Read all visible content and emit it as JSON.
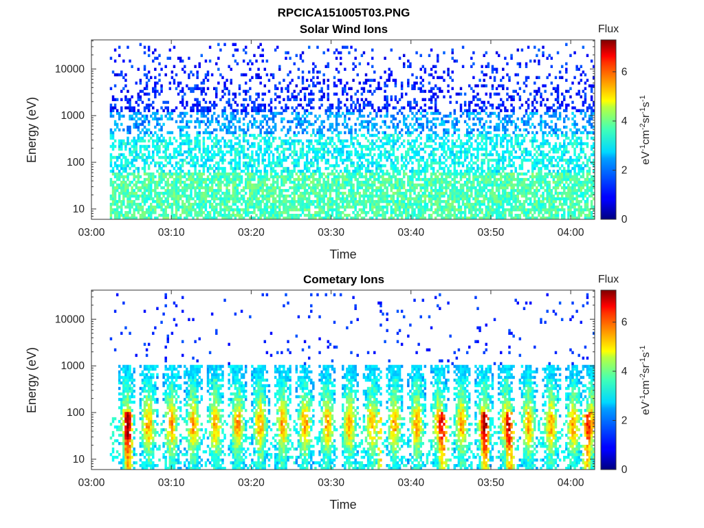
{
  "figure": {
    "super_title": "RPCICA151005T03.PNG"
  },
  "chart_data": [
    {
      "type": "heatmap",
      "title": "Solar Wind Ions",
      "xlabel": "Time",
      "ylabel": "Energy (eV)",
      "x_ticks": [
        "03:00",
        "03:10",
        "03:20",
        "03:30",
        "03:40",
        "03:50",
        "04:00"
      ],
      "y_ticks": [
        "10",
        "100",
        "1000",
        "10000"
      ],
      "y_scale": "log",
      "ylim": [
        6,
        42000
      ],
      "xlim_minutes": [
        0,
        63
      ],
      "data_start_minute": 2.3,
      "colorbar": {
        "title": "Flux",
        "label": "eV-1cm-2sr-1s-1",
        "ticks": [
          "0",
          "2",
          "4",
          "6"
        ],
        "range": [
          0,
          7.3
        ],
        "colormap": "jet"
      },
      "description": "Sparse high-energy (1000-30000 eV) blue counts across the full interval; cyan-green bands at 100-1000 eV; green/yellow-green levels 6-60 eV."
    },
    {
      "type": "heatmap",
      "title": "Cometary Ions",
      "xlabel": "Time",
      "ylabel": "Energy (eV)",
      "x_ticks": [
        "03:00",
        "03:10",
        "03:20",
        "03:30",
        "03:40",
        "03:50",
        "04:00"
      ],
      "y_ticks": [
        "10",
        "100",
        "1000",
        "10000"
      ],
      "y_scale": "log",
      "ylim": [
        6,
        42000
      ],
      "xlim_minutes": [
        0,
        63
      ],
      "data_start_minute": 2.3,
      "colorbar": {
        "title": "Flux",
        "label": "eV-1cm-2sr-1s-1",
        "ticks": [
          "0",
          "2",
          "4",
          "6"
        ],
        "range": [
          0,
          7.3
        ],
        "colormap": "jet"
      },
      "bursts_minutes": [
        4.3,
        7.0,
        9.9,
        12.6,
        15.4,
        18.2,
        21.0,
        23.8,
        26.6,
        29.4,
        32.2,
        35.0,
        37.8,
        40.6,
        43.4,
        46.2,
        49.0,
        51.8,
        54.6,
        57.4,
        60.2,
        62.5
      ],
      "hot_spots_minutes": [
        4.5,
        36.1,
        44.0,
        49.2,
        52.3,
        61.8
      ],
      "description": "Periodic vertical bursts reaching ~800 eV with peak flux (orange/red) near 30-80 eV; sparse blue counts above 2000 eV."
    }
  ]
}
